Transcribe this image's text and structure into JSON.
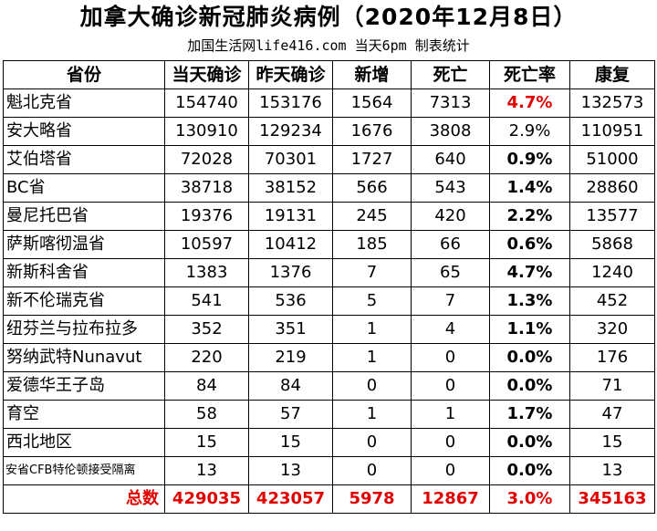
{
  "title": "加拿大确诊新冠肺炎病例（2020年12月8日）",
  "subtitle": "加国生活网life416.com 当天6pm 制表统计",
  "headers": [
    "省份",
    "当天确诊",
    "昨天确诊",
    "新增",
    "死亡",
    "死亡率",
    "康复"
  ],
  "rows": [
    {
      "province": "魁北克省",
      "today": "154740",
      "yesterday": "153176",
      "new": "1564",
      "deaths": "7313",
      "rate": "4.7%",
      "recovered": "132573"
    },
    {
      "province": "安大略省",
      "today": "130910",
      "yesterday": "129234",
      "new": "1676",
      "deaths": "3808",
      "rate": "2.9%",
      "recovered": "110951"
    },
    {
      "province": "艾伯塔省",
      "today": "72028",
      "yesterday": "70301",
      "new": "1727",
      "deaths": "640",
      "rate": "0.9%",
      "recovered": "51000"
    },
    {
      "province": "BC省",
      "today": "38718",
      "yesterday": "38152",
      "new": "566",
      "deaths": "543",
      "rate": "1.4%",
      "recovered": "28860"
    },
    {
      "province": "曼尼托巴省",
      "today": "19376",
      "yesterday": "19131",
      "new": "245",
      "deaths": "420",
      "rate": "2.2%",
      "recovered": "13577"
    },
    {
      "province": "萨斯喀彻温省",
      "today": "10597",
      "yesterday": "10412",
      "new": "185",
      "deaths": "66",
      "rate": "0.6%",
      "recovered": "5868"
    },
    {
      "province": "新斯科舍省",
      "today": "1383",
      "yesterday": "1376",
      "new": "7",
      "deaths": "65",
      "rate": "4.7%",
      "recovered": "1240"
    },
    {
      "province": "新不伦瑞克省",
      "today": "541",
      "yesterday": "536",
      "new": "5",
      "deaths": "7",
      "rate": "1.3%",
      "recovered": "452"
    },
    {
      "province": "纽芬兰与拉布拉多",
      "today": "352",
      "yesterday": "351",
      "new": "1",
      "deaths": "4",
      "rate": "1.1%",
      "recovered": "320"
    },
    {
      "province": "努纳武特Nunavut",
      "today": "220",
      "yesterday": "219",
      "new": "1",
      "deaths": "0",
      "rate": "0.0%",
      "recovered": "176"
    },
    {
      "province": "爱德华王子岛",
      "today": "84",
      "yesterday": "84",
      "new": "0",
      "deaths": "0",
      "rate": "0.0%",
      "recovered": "71"
    },
    {
      "province": "育空",
      "today": "58",
      "yesterday": "57",
      "new": "1",
      "deaths": "1",
      "rate": "1.7%",
      "recovered": "47"
    },
    {
      "province": "西北地区",
      "today": "15",
      "yesterday": "15",
      "new": "0",
      "deaths": "0",
      "rate": "0.0%",
      "recovered": "15"
    },
    {
      "province": "安省CFB特伦顿接受隔离",
      "today": "13",
      "yesterday": "13",
      "new": "0",
      "deaths": "0",
      "rate": "0.0%",
      "recovered": "13"
    }
  ],
  "total": {
    "label": "总数",
    "today": "429035",
    "yesterday": "423057",
    "new": "5978",
    "deaths": "12867",
    "rate": "3.0%",
    "recovered": "345163"
  },
  "colors": {
    "highlight": "#e00000",
    "text": "#000000",
    "border": "#000000"
  }
}
